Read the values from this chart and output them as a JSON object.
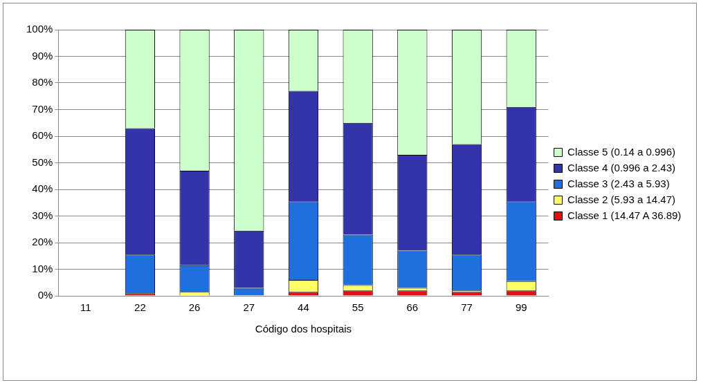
{
  "chart_data": {
    "type": "bar",
    "stacked": true,
    "xlabel": "Código dos hospitais",
    "categories": [
      "11",
      "22",
      "26",
      "27",
      "44",
      "55",
      "66",
      "77",
      "99"
    ],
    "ylim": [
      0,
      100
    ],
    "yticks": [
      {
        "value": 0,
        "label": "0%"
      },
      {
        "value": 10,
        "label": "10%"
      },
      {
        "value": 20,
        "label": "20%"
      },
      {
        "value": 30,
        "label": "30%"
      },
      {
        "value": 40,
        "label": "40%"
      },
      {
        "value": 50,
        "label": "50%"
      },
      {
        "value": 60,
        "label": "60%"
      },
      {
        "value": 70,
        "label": "70%"
      },
      {
        "value": 80,
        "label": "80%"
      },
      {
        "value": 90,
        "label": "90%"
      },
      {
        "value": 100,
        "label": "100%"
      }
    ],
    "grid": "y",
    "legend": "right",
    "series": [
      {
        "name": "Classe 1 (14.47 A 36.89)",
        "color": "#dd1111",
        "values": [
          0,
          1,
          0,
          0,
          1.5,
          2,
          2,
          1.5,
          2
        ]
      },
      {
        "name": "Classe 2 (5.93 a 14.47)",
        "color": "#ffff66",
        "values": [
          0,
          0,
          1.5,
          0,
          4.5,
          2,
          1,
          0.5,
          3.5
        ]
      },
      {
        "name": "Classe 3 (2.43 a 5.93)",
        "color": "#1f6fdf",
        "values": [
          0,
          14.5,
          10,
          3,
          29.5,
          19,
          14,
          13.5,
          30
        ]
      },
      {
        "name": "Classe 4 (0.996 a 2.43)",
        "color": "#3333aa",
        "values": [
          0,
          47.5,
          35.5,
          21.5,
          41.5,
          42,
          36,
          41.5,
          35.5
        ]
      },
      {
        "name": "Classe 5 (0.14 a 0.996)",
        "color": "#ccffcc",
        "values": [
          0,
          37,
          53,
          75.5,
          23,
          35,
          47,
          43,
          29
        ]
      }
    ]
  }
}
